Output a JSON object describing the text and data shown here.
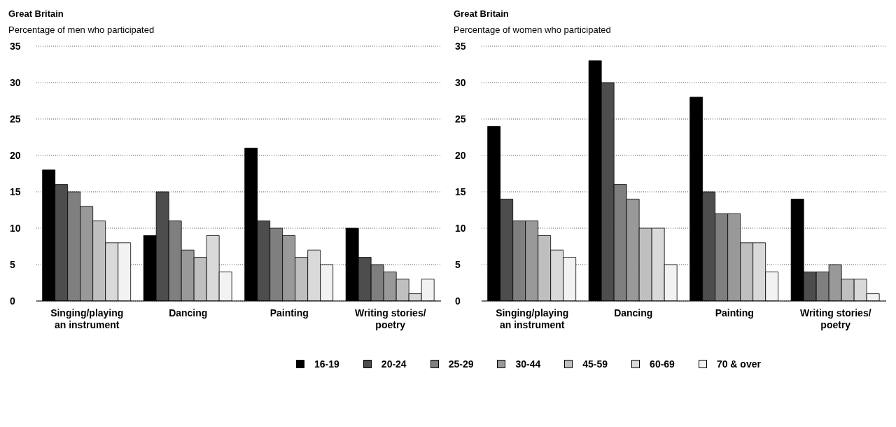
{
  "chart_data": [
    {
      "type": "bar",
      "title": "Great Britain",
      "subtitle": "Percentage of men who participated",
      "categories": [
        "Singing/playing an instrument",
        "Dancing",
        "Painting",
        "Writing stories/ poetry"
      ],
      "ylim": [
        0,
        35
      ],
      "yticks": [
        0,
        5,
        10,
        15,
        20,
        25,
        30,
        35
      ],
      "grid": "y",
      "series": [
        {
          "color": "#000000",
          "values": [
            18,
            9,
            21,
            10
          ]
        },
        {
          "color": "#4d4d4d",
          "values": [
            16,
            15,
            11,
            6
          ]
        },
        {
          "color": "#7f7f7f",
          "values": [
            15,
            11,
            10,
            5
          ]
        },
        {
          "color": "#999999",
          "values": [
            13,
            7,
            9,
            4
          ]
        },
        {
          "color": "#bfbfbf",
          "values": [
            11,
            6,
            6,
            3
          ]
        },
        {
          "color": "#d9d9d9",
          "values": [
            8,
            9,
            7,
            1
          ]
        },
        {
          "color": "#f2f2f2",
          "values": [
            8,
            4,
            5,
            3
          ]
        }
      ]
    },
    {
      "type": "bar",
      "title": "Great Britain",
      "subtitle": "Percentage of women who participated",
      "categories": [
        "Singing/playing an instrument",
        "Dancing",
        "Painting",
        "Writing stories/ poetry"
      ],
      "ylim": [
        0,
        35
      ],
      "yticks": [
        0,
        5,
        10,
        15,
        20,
        25,
        30,
        35
      ],
      "grid": "y",
      "legend": "bottom",
      "series": [
        {
          "name": "16-19",
          "color": "#000000",
          "values": [
            24,
            33,
            28,
            14
          ]
        },
        {
          "name": "20-24",
          "color": "#4d4d4d",
          "values": [
            14,
            30,
            15,
            4
          ]
        },
        {
          "name": "25-29",
          "color": "#7f7f7f",
          "values": [
            11,
            16,
            12,
            4
          ]
        },
        {
          "name": "30-44",
          "color": "#999999",
          "values": [
            11,
            14,
            12,
            5
          ]
        },
        {
          "name": "45-59",
          "color": "#bfbfbf",
          "values": [
            9,
            10,
            8,
            3
          ]
        },
        {
          "name": "60-69",
          "color": "#d9d9d9",
          "values": [
            7,
            10,
            8,
            3
          ]
        },
        {
          "name": "70 & over",
          "color": "#f2f2f2",
          "values": [
            6,
            5,
            4,
            1
          ]
        }
      ]
    }
  ]
}
